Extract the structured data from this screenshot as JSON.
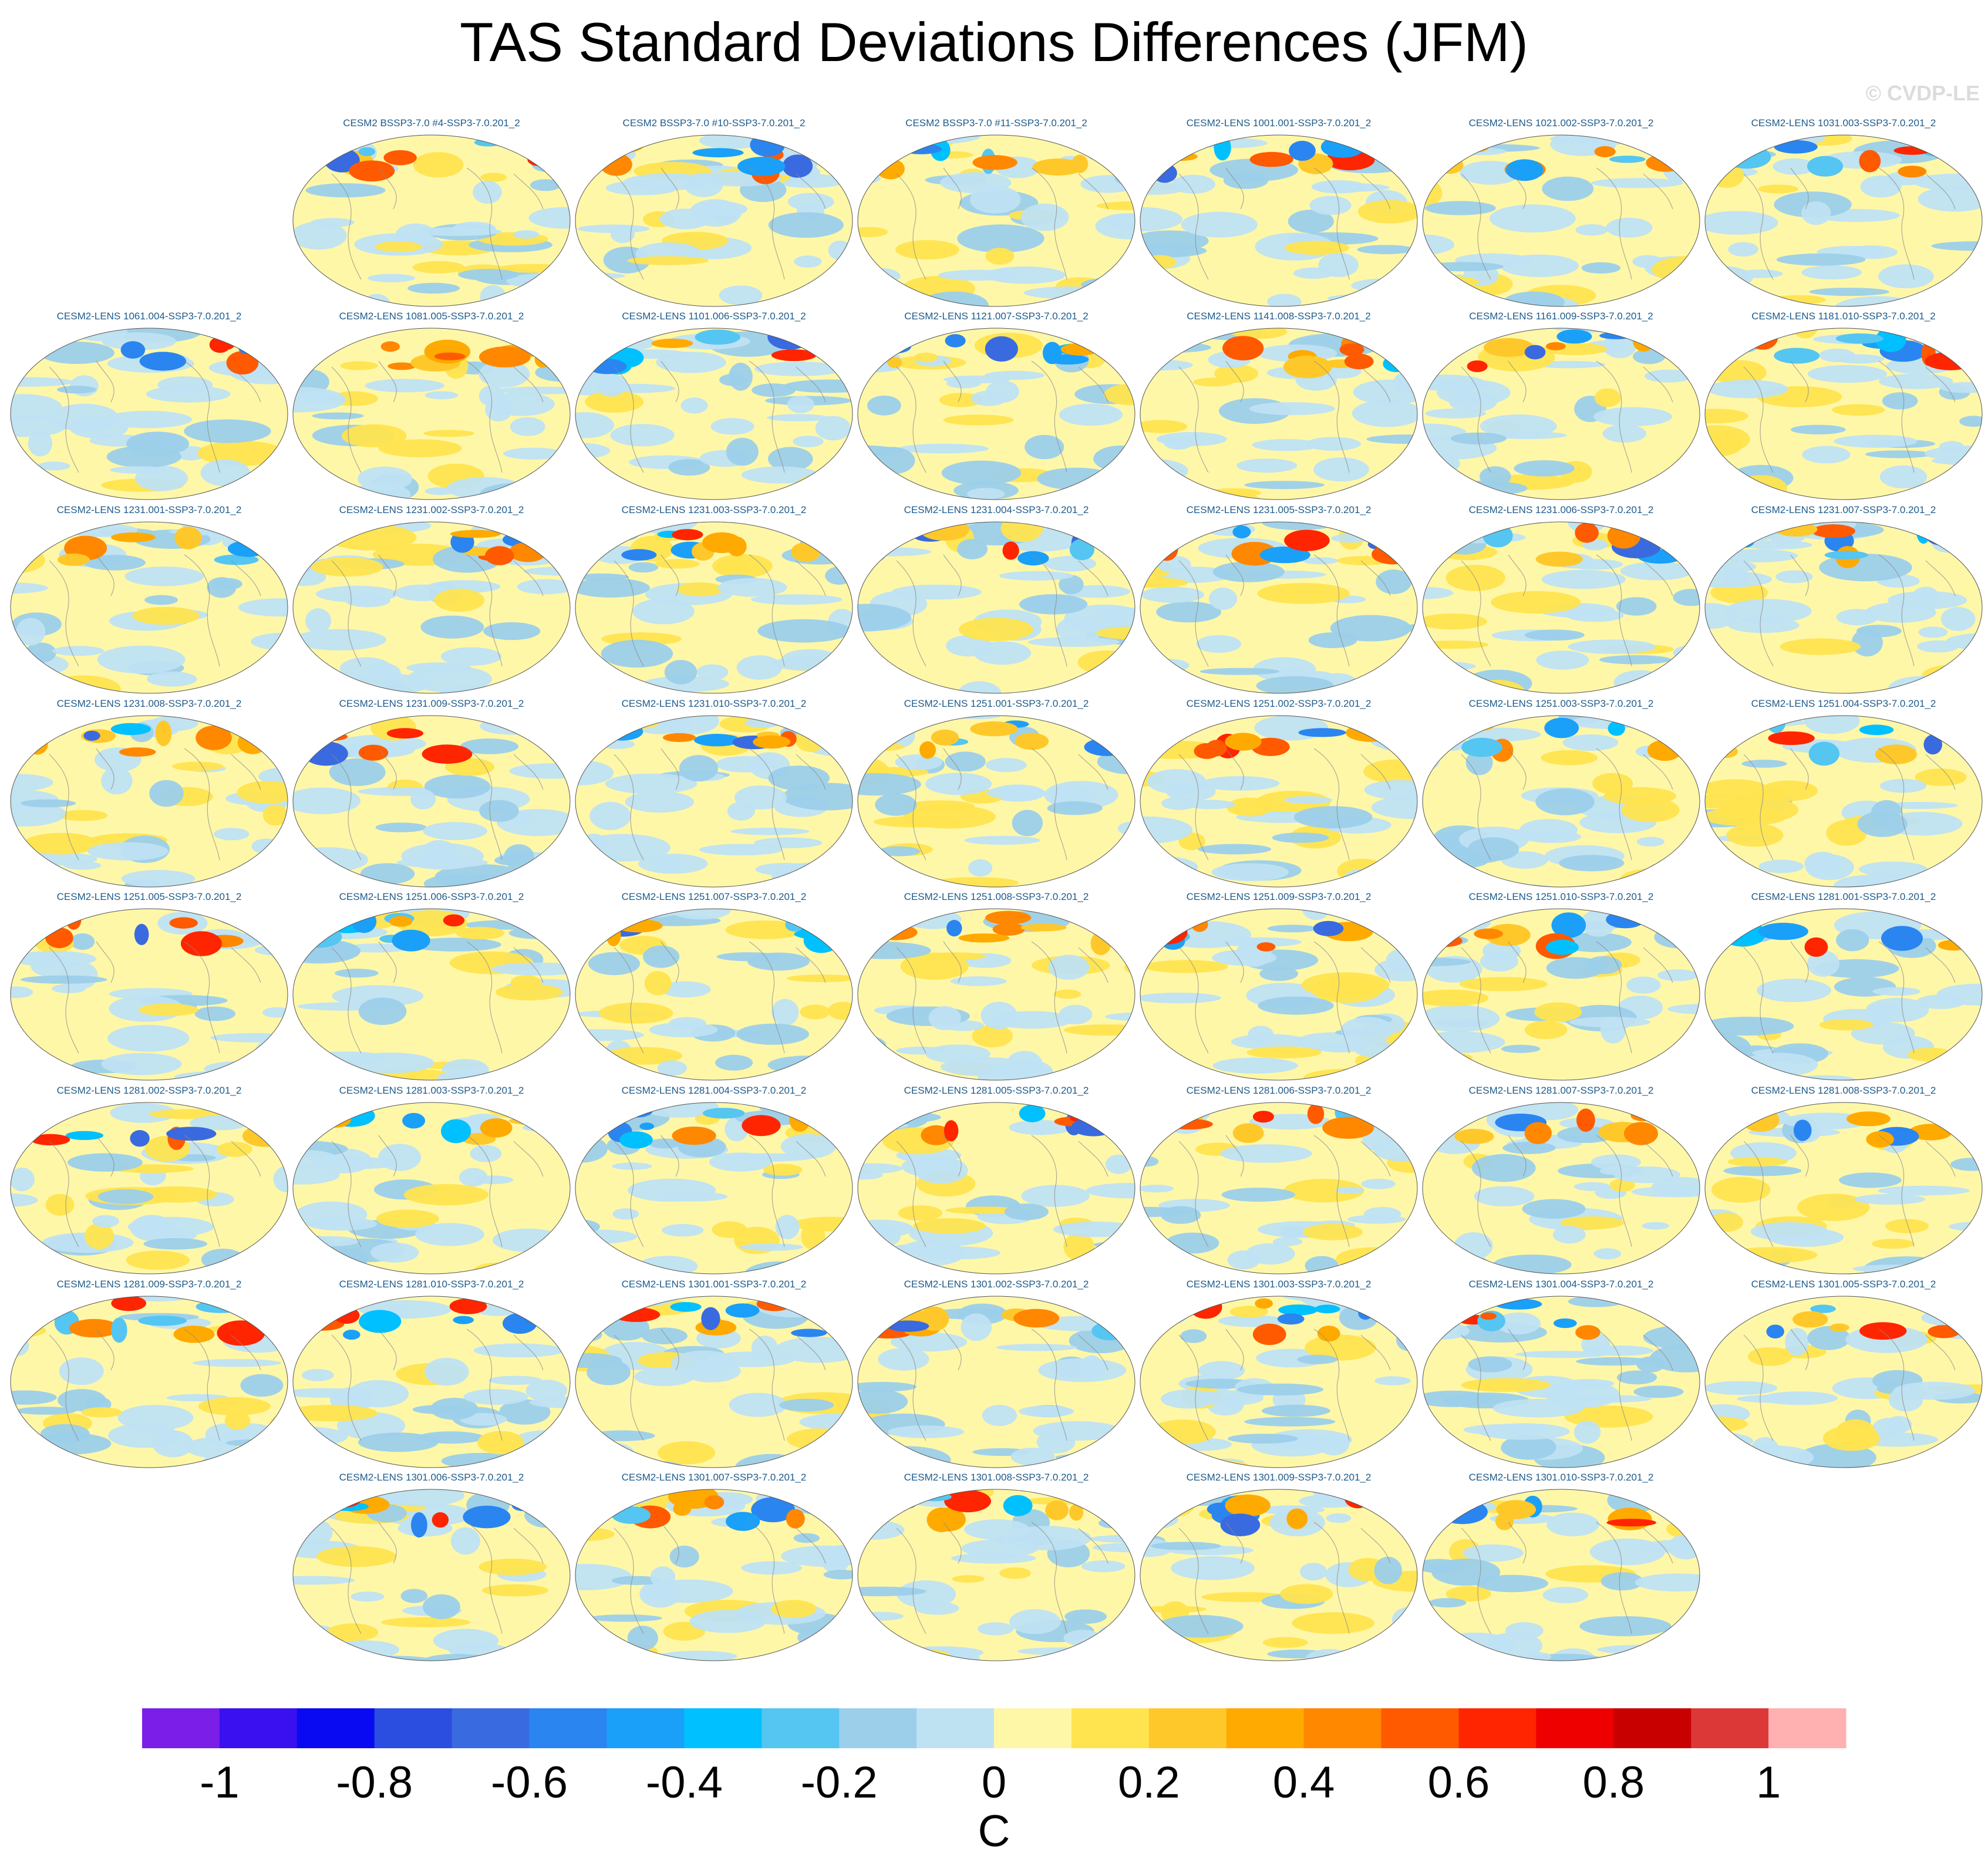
{
  "title": "TAS Standard Deviations Differences (JFM)",
  "watermark": "© CVDP-LE",
  "chart_data": {
    "type": "heatmap",
    "projection": "global map panels",
    "variable": "TAS",
    "season": "JFM",
    "units": "C",
    "color_range": [
      -1.1,
      1.1
    ],
    "color_levels": [
      -1.0,
      -0.9,
      -0.8,
      -0.7,
      -0.6,
      -0.5,
      -0.4,
      -0.3,
      -0.2,
      -0.1,
      0,
      0.1,
      0.2,
      0.3,
      0.4,
      0.5,
      0.6,
      0.7,
      0.8,
      0.9,
      1.0
    ],
    "colorbar_colors": [
      "#7b1fe8",
      "#3a0ff0",
      "#0a0af2",
      "#2b4de0",
      "#3a6ae0",
      "#2a85f0",
      "#1aa0f8",
      "#00c0ff",
      "#55c5f2",
      "#9ccfea",
      "#bfe2f3",
      "#fff7a8",
      "#ffe44f",
      "#ffc82a",
      "#ffaa00",
      "#ff8800",
      "#ff5a00",
      "#ff2500",
      "#ee0000",
      "#c80000",
      "#dd3838",
      "#ffb0b0"
    ],
    "colorbar_tick_labels": [
      "-1",
      "-0.8",
      "-0.6",
      "-0.4",
      "-0.2",
      "0",
      "0.2",
      "0.4",
      "0.6",
      "0.8",
      "1"
    ],
    "colorbar_label": "C",
    "panel_titles": [
      "CESM2 BSSP3-7.0 #4-SSP3-7.0.201_2",
      "CESM2 BSSP3-7.0 #10-SSP3-7.0.201_2",
      "CESM2 BSSP3-7.0 #11-SSP3-7.0.201_2",
      "CESM2-LENS 1001.001-SSP3-7.0.201_2",
      "CESM2-LENS 1021.002-SSP3-7.0.201_2",
      "CESM2-LENS 1031.003-SSP3-7.0.201_2",
      "CESM2-LENS 1061.004-SSP3-7.0.201_2",
      "CESM2-LENS 1081.005-SSP3-7.0.201_2",
      "CESM2-LENS 1101.006-SSP3-7.0.201_2",
      "CESM2-LENS 1121.007-SSP3-7.0.201_2",
      "CESM2-LENS 1141.008-SSP3-7.0.201_2",
      "CESM2-LENS 1161.009-SSP3-7.0.201_2",
      "CESM2-LENS 1181.010-SSP3-7.0.201_2",
      "CESM2-LENS 1231.001-SSP3-7.0.201_2",
      "CESM2-LENS 1231.002-SSP3-7.0.201_2",
      "CESM2-LENS 1231.003-SSP3-7.0.201_2",
      "CESM2-LENS 1231.004-SSP3-7.0.201_2",
      "CESM2-LENS 1231.005-SSP3-7.0.201_2",
      "CESM2-LENS 1231.006-SSP3-7.0.201_2",
      "CESM2-LENS 1231.007-SSP3-7.0.201_2",
      "CESM2-LENS 1231.008-SSP3-7.0.201_2",
      "CESM2-LENS 1231.009-SSP3-7.0.201_2",
      "CESM2-LENS 1231.010-SSP3-7.0.201_2",
      "CESM2-LENS 1251.001-SSP3-7.0.201_2",
      "CESM2-LENS 1251.002-SSP3-7.0.201_2",
      "CESM2-LENS 1251.003-SSP3-7.0.201_2",
      "CESM2-LENS 1251.004-SSP3-7.0.201_2",
      "CESM2-LENS 1251.005-SSP3-7.0.201_2",
      "CESM2-LENS 1251.006-SSP3-7.0.201_2",
      "CESM2-LENS 1251.007-SSP3-7.0.201_2",
      "CESM2-LENS 1251.008-SSP3-7.0.201_2",
      "CESM2-LENS 1251.009-SSP3-7.0.201_2",
      "CESM2-LENS 1251.010-SSP3-7.0.201_2",
      "CESM2-LENS 1281.001-SSP3-7.0.201_2",
      "CESM2-LENS 1281.002-SSP3-7.0.201_2",
      "CESM2-LENS 1281.003-SSP3-7.0.201_2",
      "CESM2-LENS 1281.004-SSP3-7.0.201_2",
      "CESM2-LENS 1281.005-SSP3-7.0.201_2",
      "CESM2-LENS 1281.006-SSP3-7.0.201_2",
      "CESM2-LENS 1281.007-SSP3-7.0.201_2",
      "CESM2-LENS 1281.008-SSP3-7.0.201_2",
      "CESM2-LENS 1281.009-SSP3-7.0.201_2",
      "CESM2-LENS 1281.010-SSP3-7.0.201_2",
      "CESM2-LENS 1301.001-SSP3-7.0.201_2",
      "CESM2-LENS 1301.002-SSP3-7.0.201_2",
      "CESM2-LENS 1301.003-SSP3-7.0.201_2",
      "CESM2-LENS 1301.004-SSP3-7.0.201_2",
      "CESM2-LENS 1301.005-SSP3-7.0.201_2",
      "CESM2-LENS 1301.006-SSP3-7.0.201_2",
      "CESM2-LENS 1301.007-SSP3-7.0.201_2",
      "CESM2-LENS 1301.008-SSP3-7.0.201_2",
      "CESM2-LENS 1301.009-SSP3-7.0.201_2",
      "CESM2-LENS 1301.010-SSP3-7.0.201_2"
    ]
  }
}
